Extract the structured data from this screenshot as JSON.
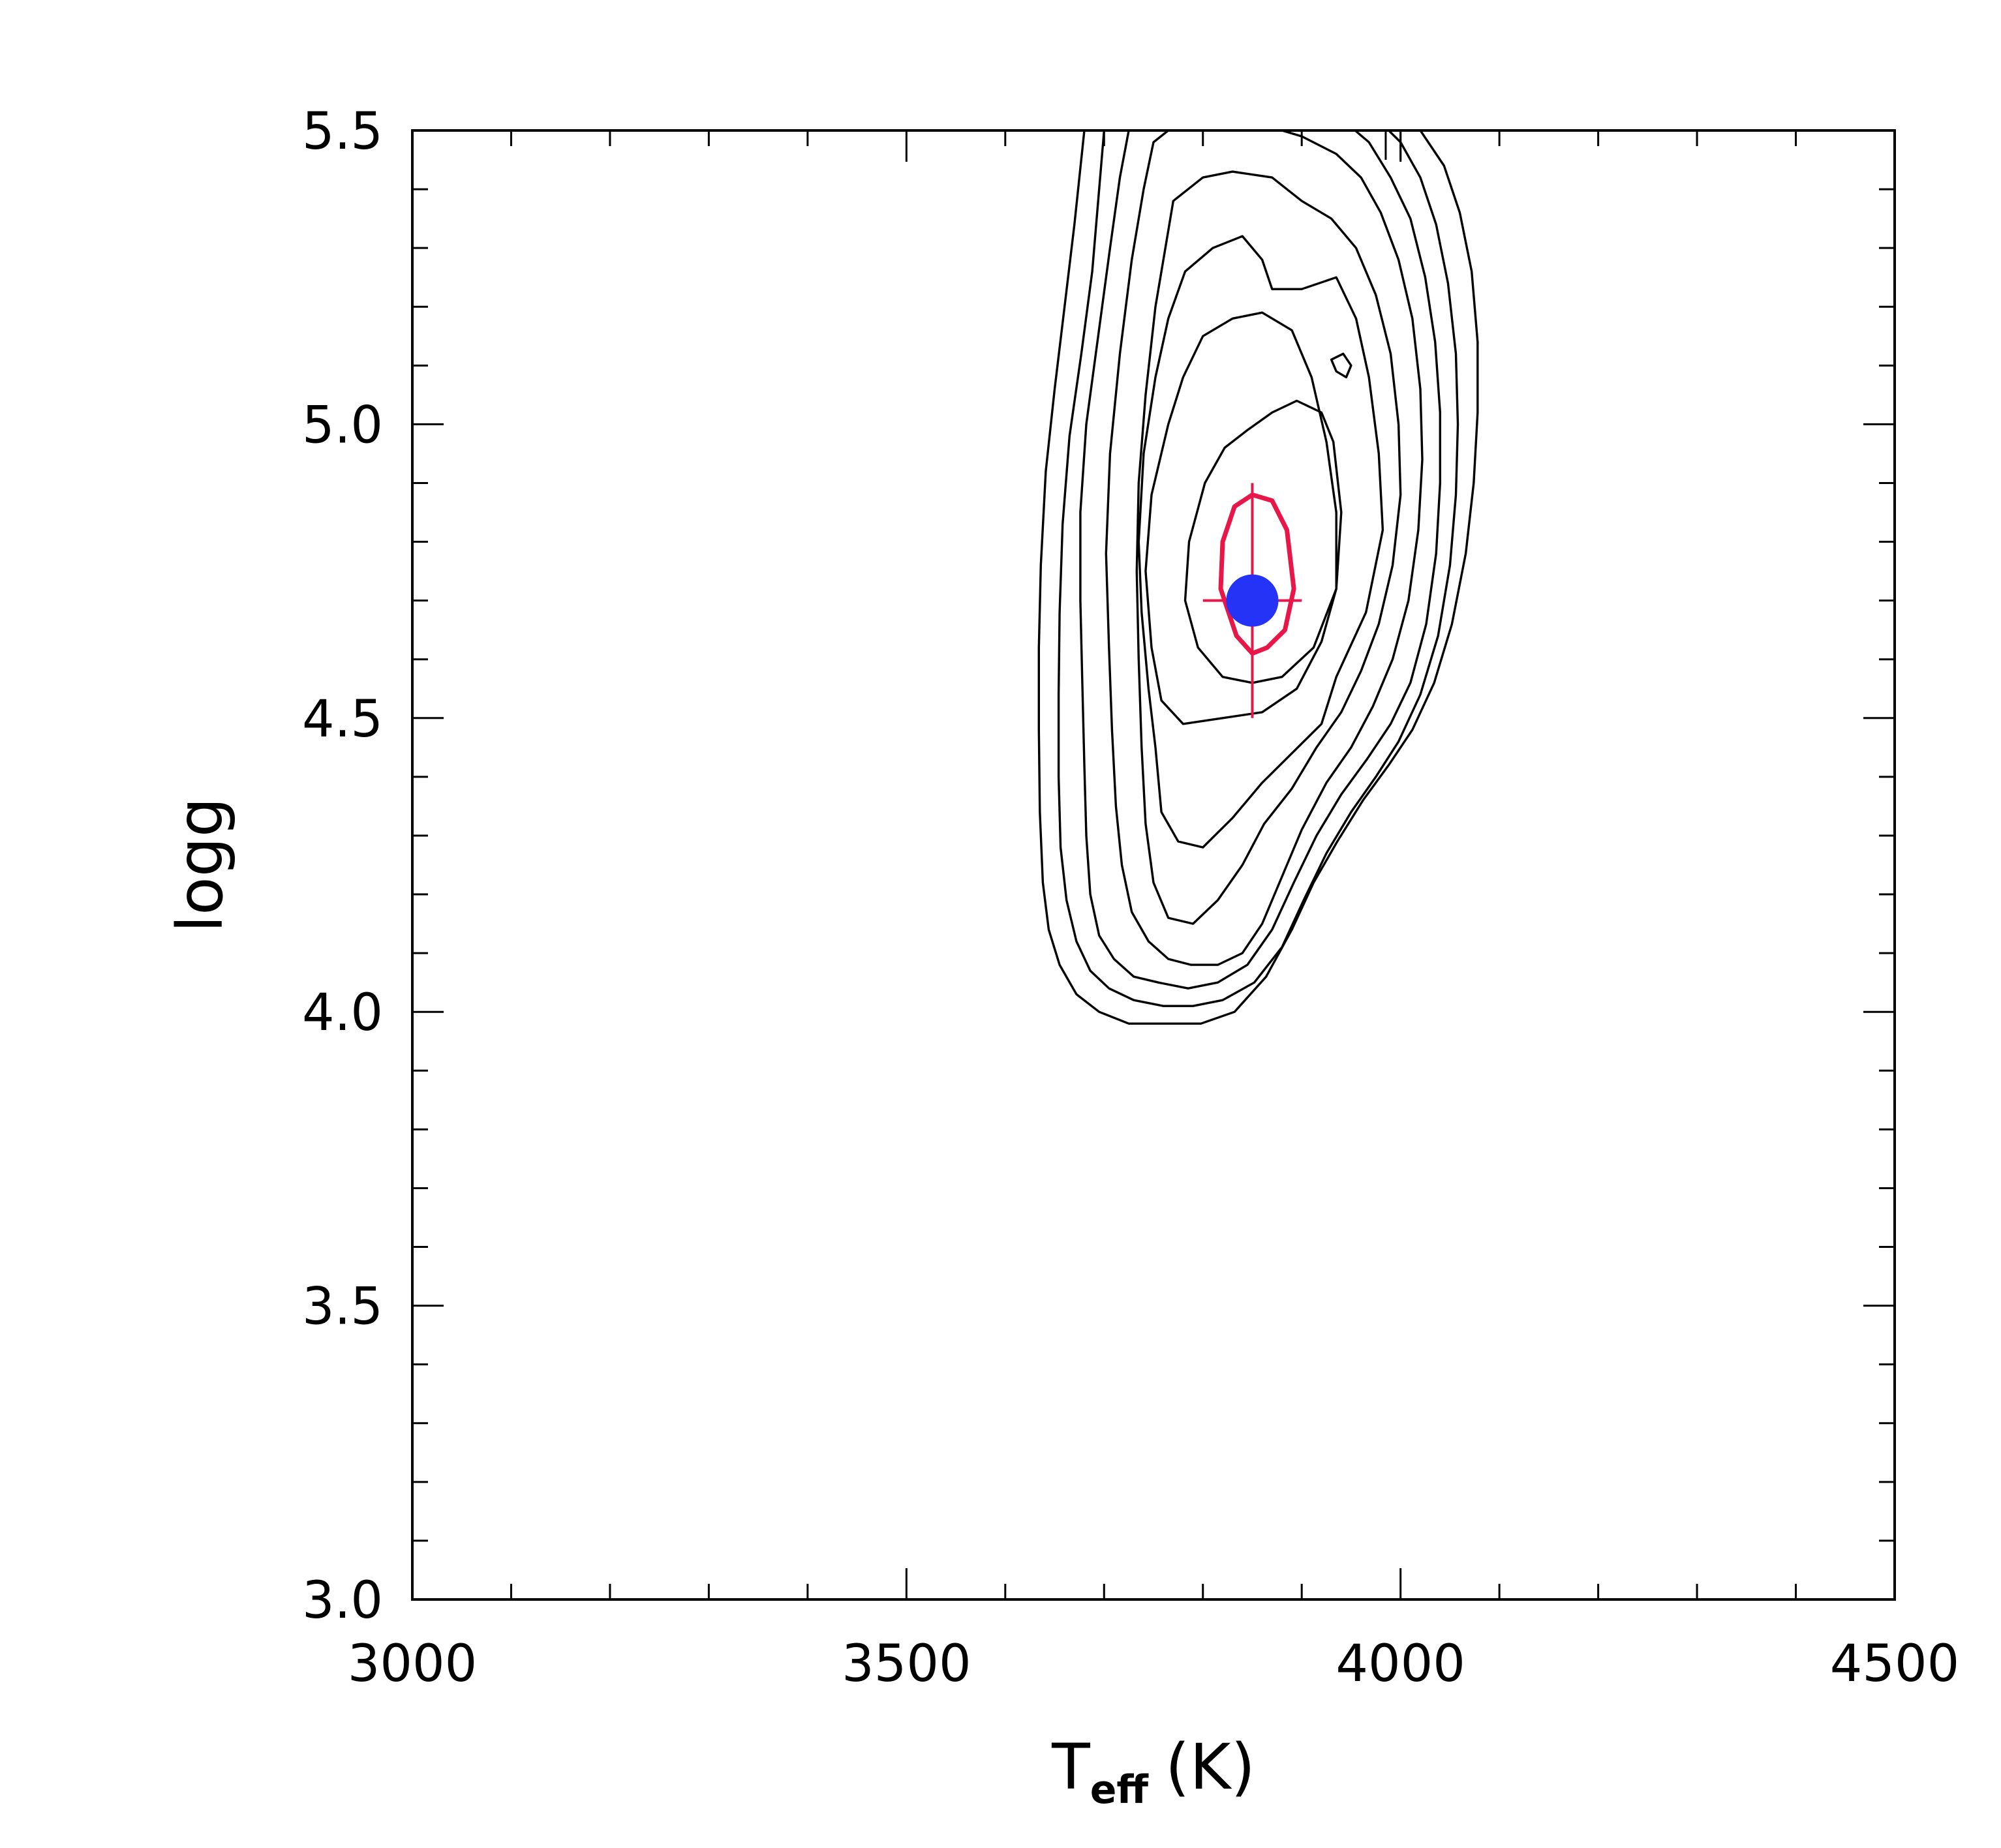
{
  "chart_data": {
    "type": "contour",
    "xlabel": "T",
    "xlabel_subscript": "eff",
    "xlabel_unit": "(K)",
    "ylabel": "logg",
    "xlim": [
      3000,
      4500
    ],
    "ylim": [
      3.0,
      5.5
    ],
    "x_ticks": [
      3000,
      3500,
      4000,
      4500
    ],
    "x_tick_labels": [
      "3000",
      "3500",
      "4000",
      "4500"
    ],
    "y_ticks": [
      3.0,
      3.5,
      4.0,
      4.5,
      5.0,
      5.5
    ],
    "y_tick_labels": [
      "3.0",
      "3.5",
      "4.0",
      "4.5",
      "5.0",
      "5.5"
    ],
    "x_minor_step": 100,
    "y_minor_step": 0.1,
    "grid": false,
    "colors": {
      "contours": "#000000",
      "best_contour": "#e8174a",
      "error_bars": "#e8174a",
      "point": "#2433f5"
    },
    "best_fit": {
      "teff": 3850,
      "logg": 4.7,
      "teff_err": 50,
      "logg_err": 0.2
    },
    "best_contour": [
      [
        3850,
        4.88
      ],
      [
        3870,
        4.87
      ],
      [
        3885,
        4.82
      ],
      [
        3892,
        4.72
      ],
      [
        3883,
        4.65
      ],
      [
        3865,
        4.62
      ],
      [
        3850,
        4.61
      ],
      [
        3834,
        4.64
      ],
      [
        3818,
        4.72
      ],
      [
        3820,
        4.8
      ],
      [
        3832,
        4.86
      ]
    ],
    "contours": [
      [
        [
          3845,
          4.99
        ],
        [
          3870,
          5.02
        ],
        [
          3895,
          5.04
        ],
        [
          3920,
          5.02
        ],
        [
          3932,
          4.97
        ],
        [
          3940,
          4.85
        ],
        [
          3935,
          4.72
        ],
        [
          3912,
          4.62
        ],
        [
          3880,
          4.57
        ],
        [
          3850,
          4.56
        ],
        [
          3820,
          4.57
        ],
        [
          3795,
          4.62
        ],
        [
          3782,
          4.7
        ],
        [
          3786,
          4.8
        ],
        [
          3802,
          4.9
        ],
        [
          3822,
          4.96
        ]
      ],
      [
        [
          3800,
          5.15
        ],
        [
          3830,
          5.18
        ],
        [
          3860,
          5.19
        ],
        [
          3890,
          5.16
        ],
        [
          3910,
          5.08
        ],
        [
          3925,
          4.97
        ],
        [
          3935,
          4.85
        ],
        [
          3935,
          4.72
        ],
        [
          3920,
          4.63
        ],
        [
          3895,
          4.55
        ],
        [
          3860,
          4.51
        ],
        [
          3820,
          4.5
        ],
        [
          3780,
          4.49
        ],
        [
          3758,
          4.53
        ],
        [
          3748,
          4.62
        ],
        [
          3742,
          4.75
        ],
        [
          3748,
          4.88
        ],
        [
          3765,
          5.0
        ],
        [
          3780,
          5.08
        ]
      ],
      [
        [
          3782,
          5.26
        ],
        [
          3810,
          5.3
        ],
        [
          3840,
          5.32
        ],
        [
          3860,
          5.28
        ],
        [
          3870,
          5.23
        ],
        [
          3900,
          5.23
        ],
        [
          3935,
          5.25
        ],
        [
          3955,
          5.18
        ],
        [
          3968,
          5.08
        ],
        [
          3978,
          4.95
        ],
        [
          3982,
          4.82
        ],
        [
          3965,
          4.68
        ],
        [
          3935,
          4.57
        ],
        [
          3920,
          4.49
        ],
        [
          3890,
          4.44
        ],
        [
          3860,
          4.39
        ],
        [
          3830,
          4.33
        ],
        [
          3800,
          4.28
        ],
        [
          3775,
          4.29
        ],
        [
          3758,
          4.34
        ],
        [
          3752,
          4.45
        ],
        [
          3745,
          4.55
        ],
        [
          3738,
          4.68
        ],
        [
          3735,
          4.8
        ],
        [
          3740,
          4.95
        ],
        [
          3752,
          5.08
        ],
        [
          3765,
          5.18
        ]
      ],
      [
        [
          3770,
          5.38
        ],
        [
          3800,
          5.42
        ],
        [
          3830,
          5.43
        ],
        [
          3870,
          5.42
        ],
        [
          3900,
          5.38
        ],
        [
          3930,
          5.35
        ],
        [
          3955,
          5.3
        ],
        [
          3975,
          5.22
        ],
        [
          3990,
          5.12
        ],
        [
          3998,
          5.0
        ],
        [
          4000,
          4.88
        ],
        [
          3992,
          4.76
        ],
        [
          3978,
          4.66
        ],
        [
          3960,
          4.58
        ],
        [
          3940,
          4.51
        ],
        [
          3915,
          4.45
        ],
        [
          3890,
          4.38
        ],
        [
          3862,
          4.32
        ],
        [
          3840,
          4.25
        ],
        [
          3815,
          4.19
        ],
        [
          3790,
          4.15
        ],
        [
          3765,
          4.16
        ],
        [
          3750,
          4.22
        ],
        [
          3742,
          4.32
        ],
        [
          3738,
          4.45
        ],
        [
          3735,
          4.6
        ],
        [
          3733,
          4.75
        ],
        [
          3735,
          4.9
        ],
        [
          3742,
          5.05
        ],
        [
          3752,
          5.2
        ],
        [
          3762,
          5.3
        ]
      ],
      [
        [
          3750,
          5.48
        ],
        [
          3780,
          5.52
        ],
        [
          3820,
          5.53
        ],
        [
          3860,
          5.51
        ],
        [
          3900,
          5.49
        ],
        [
          3935,
          5.46
        ],
        [
          3960,
          5.42
        ],
        [
          3980,
          5.36
        ],
        [
          3998,
          5.28
        ],
        [
          4012,
          5.18
        ],
        [
          4020,
          5.06
        ],
        [
          4022,
          4.94
        ],
        [
          4018,
          4.82
        ],
        [
          4008,
          4.7
        ],
        [
          3992,
          4.6
        ],
        [
          3972,
          4.52
        ],
        [
          3950,
          4.45
        ],
        [
          3925,
          4.39
        ],
        [
          3900,
          4.31
        ],
        [
          3880,
          4.23
        ],
        [
          3860,
          4.15
        ],
        [
          3840,
          4.1
        ],
        [
          3815,
          4.08
        ],
        [
          3788,
          4.08
        ],
        [
          3765,
          4.09
        ],
        [
          3745,
          4.12
        ],
        [
          3728,
          4.17
        ],
        [
          3718,
          4.25
        ],
        [
          3712,
          4.35
        ],
        [
          3708,
          4.48
        ],
        [
          3705,
          4.62
        ],
        [
          3702,
          4.78
        ],
        [
          3706,
          4.95
        ],
        [
          3716,
          5.12
        ],
        [
          3728,
          5.28
        ],
        [
          3740,
          5.4
        ]
      ],
      [
        [
          3725,
          5.5
        ],
        [
          3760,
          5.54
        ],
        [
          3800,
          5.55
        ],
        [
          3850,
          5.55
        ],
        [
          3900,
          5.54
        ],
        [
          3940,
          5.52
        ],
        [
          3968,
          5.48
        ],
        [
          3990,
          5.42
        ],
        [
          4010,
          5.35
        ],
        [
          4025,
          5.25
        ],
        [
          4035,
          5.14
        ],
        [
          4040,
          5.02
        ],
        [
          4040,
          4.9
        ],
        [
          4036,
          4.78
        ],
        [
          4026,
          4.66
        ],
        [
          4010,
          4.56
        ],
        [
          3990,
          4.49
        ],
        [
          3966,
          4.43
        ],
        [
          3940,
          4.37
        ],
        [
          3915,
          4.3
        ],
        [
          3892,
          4.22
        ],
        [
          3870,
          4.14
        ],
        [
          3845,
          4.08
        ],
        [
          3815,
          4.05
        ],
        [
          3785,
          4.04
        ],
        [
          3755,
          4.05
        ],
        [
          3730,
          4.06
        ],
        [
          3710,
          4.09
        ],
        [
          3695,
          4.13
        ],
        [
          3686,
          4.2
        ],
        [
          3682,
          4.3
        ],
        [
          3680,
          4.42
        ],
        [
          3678,
          4.56
        ],
        [
          3676,
          4.7
        ],
        [
          3676,
          4.85
        ],
        [
          3682,
          5.0
        ],
        [
          3694,
          5.15
        ],
        [
          3706,
          5.3
        ],
        [
          3716,
          5.42
        ]
      ],
      [
        [
          3700,
          5.5
        ],
        [
          3740,
          5.54
        ],
        [
          3780,
          5.56
        ],
        [
          3830,
          5.57
        ],
        [
          3880,
          5.57
        ],
        [
          3930,
          5.56
        ],
        [
          3970,
          5.53
        ],
        [
          4000,
          5.48
        ],
        [
          4020,
          5.42
        ],
        [
          4036,
          5.34
        ],
        [
          4048,
          5.24
        ],
        [
          4056,
          5.12
        ],
        [
          4058,
          5.0
        ],
        [
          4056,
          4.88
        ],
        [
          4050,
          4.76
        ],
        [
          4038,
          4.64
        ],
        [
          4020,
          4.54
        ],
        [
          3998,
          4.46
        ],
        [
          3975,
          4.4
        ],
        [
          3950,
          4.34
        ],
        [
          3925,
          4.27
        ],
        [
          3902,
          4.19
        ],
        [
          3880,
          4.11
        ],
        [
          3852,
          4.05
        ],
        [
          3820,
          4.02
        ],
        [
          3790,
          4.01
        ],
        [
          3760,
          4.01
        ],
        [
          3730,
          4.02
        ],
        [
          3705,
          4.04
        ],
        [
          3686,
          4.07
        ],
        [
          3672,
          4.12
        ],
        [
          3662,
          4.19
        ],
        [
          3656,
          4.28
        ],
        [
          3654,
          4.4
        ],
        [
          3654,
          4.54
        ],
        [
          3655,
          4.68
        ],
        [
          3658,
          4.83
        ],
        [
          3665,
          4.98
        ],
        [
          3677,
          5.12
        ],
        [
          3688,
          5.26
        ],
        [
          3695,
          5.4
        ]
      ],
      [
        [
          3680,
          5.5
        ],
        [
          3720,
          5.54
        ],
        [
          3770,
          5.57
        ],
        [
          3830,
          5.59
        ],
        [
          3890,
          5.59
        ],
        [
          3950,
          5.58
        ],
        [
          3990,
          5.55
        ],
        [
          4020,
          5.5
        ],
        [
          4044,
          5.44
        ],
        [
          4060,
          5.36
        ],
        [
          4072,
          5.26
        ],
        [
          4078,
          5.14
        ],
        [
          4078,
          5.02
        ],
        [
          4074,
          4.9
        ],
        [
          4066,
          4.78
        ],
        [
          4052,
          4.66
        ],
        [
          4034,
          4.56
        ],
        [
          4012,
          4.48
        ],
        [
          3988,
          4.42
        ],
        [
          3962,
          4.36
        ],
        [
          3936,
          4.29
        ],
        [
          3912,
          4.22
        ],
        [
          3890,
          4.14
        ],
        [
          3864,
          4.06
        ],
        [
          3832,
          4.0
        ],
        [
          3798,
          3.98
        ],
        [
          3762,
          3.98
        ],
        [
          3725,
          3.98
        ],
        [
          3695,
          4.0
        ],
        [
          3672,
          4.03
        ],
        [
          3655,
          4.08
        ],
        [
          3644,
          4.14
        ],
        [
          3638,
          4.22
        ],
        [
          3635,
          4.34
        ],
        [
          3634,
          4.48
        ],
        [
          3634,
          4.62
        ],
        [
          3636,
          4.76
        ],
        [
          3641,
          4.92
        ],
        [
          3650,
          5.06
        ],
        [
          3660,
          5.2
        ],
        [
          3670,
          5.34
        ]
      ],
      [
        [
          3930,
          5.11
        ],
        [
          3942,
          5.12
        ],
        [
          3950,
          5.1
        ],
        [
          3945,
          5.08
        ],
        [
          3935,
          5.09
        ]
      ]
    ],
    "top_marks": [
      3985,
      4000
    ]
  }
}
